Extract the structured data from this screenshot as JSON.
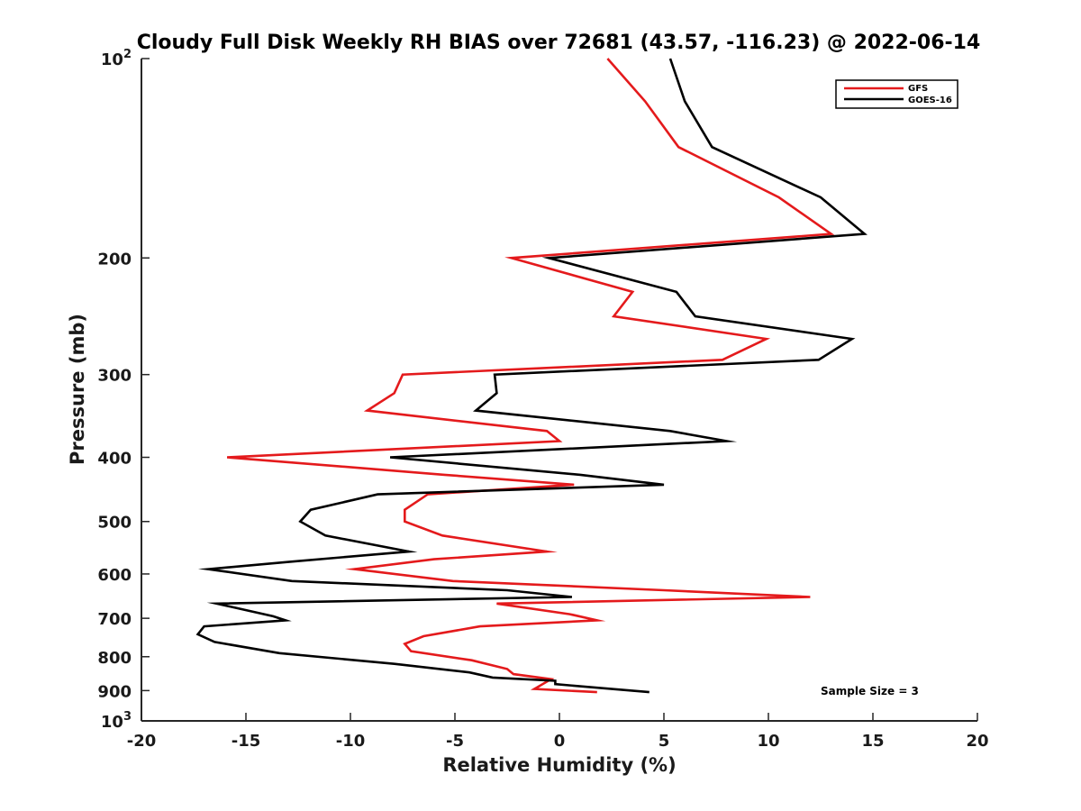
{
  "chart_data": {
    "type": "line",
    "title": "Cloudy Full Disk Weekly RH BIAS over 72681 (43.57, -116.23) @ 2022-06-14",
    "xlabel": "Relative Humidity (%)",
    "ylabel": "Pressure (mb)",
    "xlim": [
      -20,
      20
    ],
    "ylim": [
      100,
      1000
    ],
    "y_scale": "log",
    "y_reversed": true,
    "grid": false,
    "legend_position": "top-right",
    "x_ticks": [
      -20,
      -15,
      -10,
      -5,
      0,
      5,
      10,
      15,
      20
    ],
    "x_tick_labels": [
      "-20",
      "-15",
      "-10",
      "-5",
      "0",
      "5",
      "10",
      "15",
      "20"
    ],
    "y_ticks": [
      {
        "value": 100,
        "base": "10",
        "exp": "2"
      },
      {
        "value": 200,
        "label": "200"
      },
      {
        "value": 300,
        "label": "300"
      },
      {
        "value": 400,
        "label": "400"
      },
      {
        "value": 500,
        "label": "500"
      },
      {
        "value": 600,
        "label": "600"
      },
      {
        "value": 700,
        "label": "700"
      },
      {
        "value": 800,
        "label": "800"
      },
      {
        "value": 900,
        "label": "900"
      },
      {
        "value": 1000,
        "base": "10",
        "exp": "3"
      }
    ],
    "series": [
      {
        "name": "GFS",
        "color": "#e41a1c",
        "points": [
          [
            2.3,
            100
          ],
          [
            4.1,
            116
          ],
          [
            5.7,
            136
          ],
          [
            10.5,
            162
          ],
          [
            13.0,
            184
          ],
          [
            -2.3,
            200
          ],
          [
            3.5,
            225
          ],
          [
            2.6,
            245
          ],
          [
            9.9,
            265
          ],
          [
            7.8,
            285
          ],
          [
            -7.5,
            300
          ],
          [
            -7.9,
            320
          ],
          [
            -9.2,
            340
          ],
          [
            -0.6,
            365
          ],
          [
            0.0,
            378
          ],
          [
            -15.9,
            400
          ],
          [
            -5.5,
            425
          ],
          [
            0.7,
            440
          ],
          [
            -6.3,
            455
          ],
          [
            -7.4,
            480
          ],
          [
            -7.4,
            500
          ],
          [
            -5.6,
            525
          ],
          [
            -0.6,
            555
          ],
          [
            -6.0,
            570
          ],
          [
            -9.8,
            590
          ],
          [
            -5.1,
            615
          ],
          [
            5.0,
            635
          ],
          [
            12.0,
            650
          ],
          [
            -3.0,
            665
          ],
          [
            0.5,
            690
          ],
          [
            1.8,
            705
          ],
          [
            -3.8,
            720
          ],
          [
            -6.5,
            745
          ],
          [
            -7.4,
            765
          ],
          [
            -7.1,
            785
          ],
          [
            -4.2,
            810
          ],
          [
            -2.5,
            835
          ],
          [
            -2.2,
            850
          ],
          [
            -0.4,
            865
          ],
          [
            -1.2,
            895
          ],
          [
            1.8,
            905
          ]
        ]
      },
      {
        "name": "GOES-16",
        "color": "#000000",
        "points": [
          [
            5.3,
            100
          ],
          [
            6.0,
            116
          ],
          [
            7.3,
            136
          ],
          [
            12.5,
            162
          ],
          [
            14.6,
            184
          ],
          [
            -0.5,
            200
          ],
          [
            5.6,
            225
          ],
          [
            6.5,
            245
          ],
          [
            14.0,
            265
          ],
          [
            12.4,
            285
          ],
          [
            -3.1,
            300
          ],
          [
            -3.0,
            320
          ],
          [
            -4.0,
            340
          ],
          [
            5.3,
            365
          ],
          [
            8.0,
            378
          ],
          [
            -8.1,
            400
          ],
          [
            1.0,
            425
          ],
          [
            5.0,
            440
          ],
          [
            -8.7,
            455
          ],
          [
            -11.9,
            480
          ],
          [
            -12.4,
            500
          ],
          [
            -11.2,
            525
          ],
          [
            -7.2,
            555
          ],
          [
            -12.9,
            575
          ],
          [
            -16.8,
            590
          ],
          [
            -12.8,
            615
          ],
          [
            -2.5,
            635
          ],
          [
            0.6,
            650
          ],
          [
            -16.4,
            665
          ],
          [
            -13.7,
            695
          ],
          [
            -13.1,
            705
          ],
          [
            -17.0,
            720
          ],
          [
            -17.3,
            740
          ],
          [
            -16.5,
            760
          ],
          [
            -13.4,
            790
          ],
          [
            -7.9,
            820
          ],
          [
            -4.3,
            845
          ],
          [
            -3.2,
            860
          ],
          [
            -0.2,
            870
          ],
          [
            -0.2,
            880
          ],
          [
            4.3,
            905
          ]
        ]
      }
    ],
    "annotation": "Sample Size = 3"
  }
}
